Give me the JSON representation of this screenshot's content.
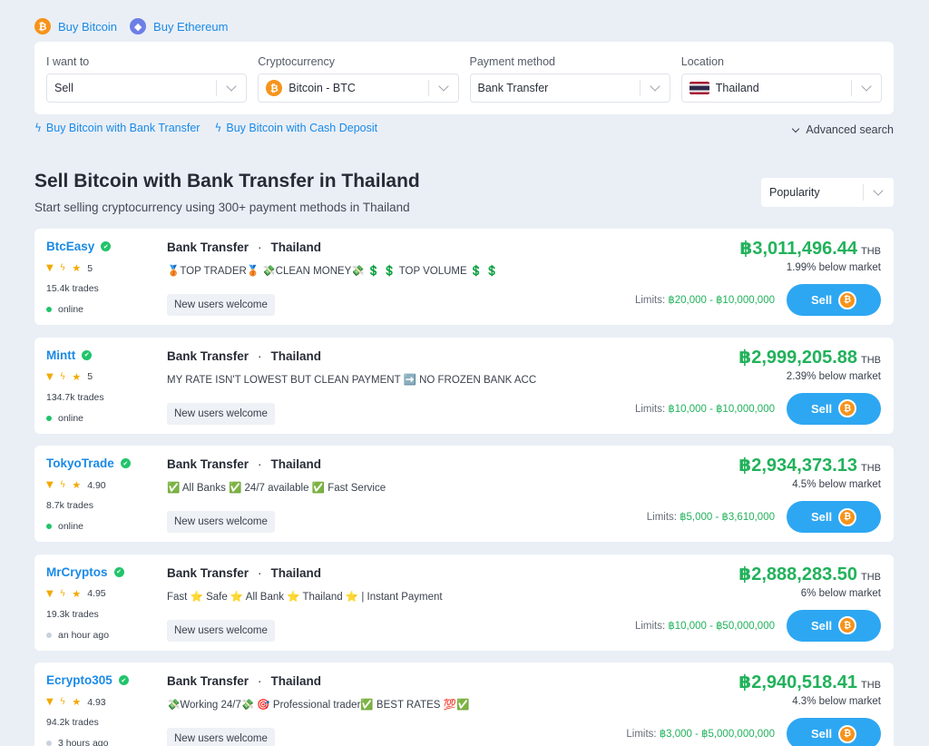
{
  "top_links": [
    {
      "label": "Buy Bitcoin",
      "icon": "bitcoin-icon"
    },
    {
      "label": "Buy Ethereum",
      "icon": "ethereum-icon"
    }
  ],
  "filters": {
    "want": {
      "label": "I want to",
      "value": "Sell"
    },
    "crypto": {
      "label": "Cryptocurrency",
      "value": "Bitcoin - BTC"
    },
    "payment": {
      "label": "Payment method",
      "value": "Bank Transfer"
    },
    "location": {
      "label": "Location",
      "value": "Thailand"
    }
  },
  "quick_links": [
    "Buy Bitcoin with Bank Transfer",
    "Buy Bitcoin with Cash Deposit"
  ],
  "advanced_search": "Advanced search",
  "heading": "Sell Bitcoin with Bank Transfer in Thailand",
  "subheading": "Start selling cryptocurrency using 300+ payment methods in Thailand",
  "sort": {
    "value": "Popularity"
  },
  "offers": [
    {
      "name": "BtcEasy",
      "rating": "5",
      "trades": "15.4k trades",
      "status": "online",
      "method": "Bank Transfer",
      "location": "Thailand",
      "terms": "🥉TOP TRADER🥉 💸CLEAN MONEY💸 💲 💲 TOP VOLUME 💲 💲",
      "tag": "New users welcome",
      "price": "฿3,011,496.44",
      "currency": "THB",
      "market": "1.99% below market",
      "limits_label": "Limits:",
      "limits": "฿20,000 - ฿10,000,000",
      "button": "Sell"
    },
    {
      "name": "Mintt",
      "rating": "5",
      "trades": "134.7k trades",
      "status": "online",
      "method": "Bank Transfer",
      "location": "Thailand",
      "terms": "MY RATE ISN'T LOWEST BUT CLEAN PAYMENT ➡️ NO FROZEN BANK ACC",
      "tag": "New users welcome",
      "price": "฿2,999,205.88",
      "currency": "THB",
      "market": "2.39% below market",
      "limits_label": "Limits:",
      "limits": "฿10,000 - ฿10,000,000",
      "button": "Sell"
    },
    {
      "name": "TokyoTrade",
      "rating": "4.90",
      "trades": "8.7k trades",
      "status": "online",
      "method": "Bank Transfer",
      "location": "Thailand",
      "terms": "✅ All Banks ✅ 24/7 available ✅ Fast Service",
      "tag": "New users welcome",
      "price": "฿2,934,373.13",
      "currency": "THB",
      "market": "4.5% below market",
      "limits_label": "Limits:",
      "limits": "฿5,000 - ฿3,610,000",
      "button": "Sell"
    },
    {
      "name": "MrCryptos",
      "rating": "4.95",
      "trades": "19.3k trades",
      "status": "an hour ago",
      "method": "Bank Transfer",
      "location": "Thailand",
      "terms": "Fast ⭐ Safe ⭐ All Bank ⭐ Thailand ⭐ | Instant Payment",
      "tag": "New users welcome",
      "price": "฿2,888,283.50",
      "currency": "THB",
      "market": "6% below market",
      "limits_label": "Limits:",
      "limits": "฿10,000 - ฿50,000,000",
      "button": "Sell"
    },
    {
      "name": "Ecrypto305",
      "rating": "4.93",
      "trades": "94.2k trades",
      "status": "3 hours ago",
      "method": "Bank Transfer",
      "location": "Thailand",
      "terms": "💸Working 24/7💸 🎯 Professional trader✅ BEST RATES 💯✅",
      "tag": "New users welcome",
      "price": "฿2,940,518.41",
      "currency": "THB",
      "market": "4.3% below market",
      "limits_label": "Limits:",
      "limits": "฿3,000 - ฿5,000,000,000",
      "button": "Sell"
    }
  ],
  "colors": {
    "accent": "#1a8ae6",
    "price": "#21b25b",
    "button": "#2da7f2",
    "background": "#eaeff6"
  }
}
